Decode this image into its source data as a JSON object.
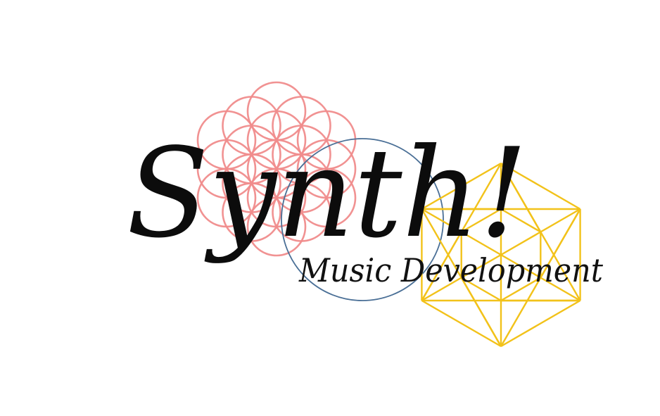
{
  "logo": {
    "title": "Synth!",
    "subtitle": "Music Development",
    "colors": {
      "background": "#ffffff",
      "flower_of_life": "#f08c8c",
      "blue_circle": "#4a6f96",
      "gold_polyhedron": "#f2c21a",
      "text": "#0c0c0c"
    },
    "motifs": [
      "flower-of-life",
      "circle",
      "cube-star-polyhedron"
    ]
  }
}
